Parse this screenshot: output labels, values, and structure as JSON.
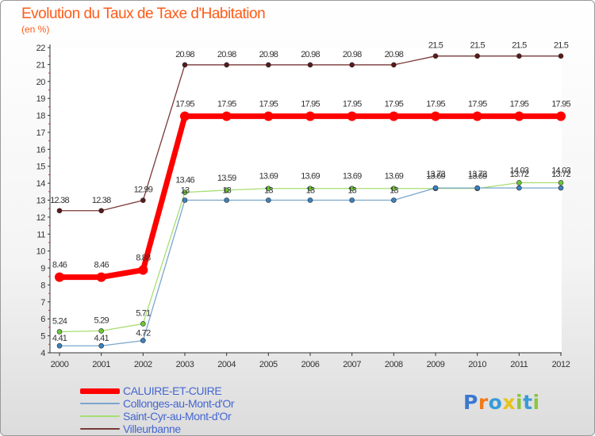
{
  "header": {
    "title": "Evolution du Taux de Taxe d'Habitation",
    "subtitle": "(en %)"
  },
  "logo": {
    "text": "Proxiti"
  },
  "chart_data": {
    "type": "line",
    "title": "Evolution du Taux de Taxe d'Habitation",
    "ylabel": "(en %)",
    "xlabel": "",
    "ylim": [
      4,
      22
    ],
    "yticks": [
      4,
      5,
      6,
      7,
      8,
      9,
      10,
      11,
      12,
      13,
      14,
      15,
      16,
      17,
      18,
      19,
      20,
      21,
      22
    ],
    "x": [
      "2000",
      "2001",
      "2002",
      "2003",
      "2004",
      "2005",
      "2006",
      "2007",
      "2008",
      "2009",
      "2010",
      "2011",
      "2012"
    ],
    "series": [
      {
        "name": "CALUIRE-ET-CUIRE",
        "color": "#ff0000",
        "marker_color": "#ff0000",
        "width": 7,
        "values": [
          8.46,
          8.46,
          8.88,
          17.95,
          17.95,
          17.95,
          17.95,
          17.95,
          17.95,
          17.95,
          17.95,
          17.95,
          17.95
        ],
        "labels": [
          "8.46",
          "8.46",
          "8.88",
          "17.95",
          "17.95",
          "17.95",
          "17.95",
          "17.95",
          "17.95",
          "17.95",
          "17.95",
          "17.95",
          "17.95"
        ]
      },
      {
        "name": "Collonges-au-Mont-d'Or",
        "color": "#7aa6cc",
        "marker_color": "#3b82c0",
        "width": 1.3,
        "values": [
          4.41,
          4.41,
          4.72,
          13,
          13,
          13,
          13,
          13,
          13,
          13.72,
          13.72,
          13.72,
          13.72
        ],
        "labels": [
          "4.41",
          "4.41",
          "4.72",
          "13",
          "13",
          "13",
          "13",
          "13",
          "13",
          "13.72",
          "13.72",
          "13.72",
          "13.72"
        ]
      },
      {
        "name": "Saint-Cyr-au-Mont-d'Or",
        "color": "#a6de72",
        "marker_color": "#6cc63a",
        "width": 1.3,
        "values": [
          5.24,
          5.29,
          5.71,
          13.46,
          13.59,
          13.69,
          13.69,
          13.69,
          13.69,
          13.69,
          13.69,
          14.03,
          14.03
        ],
        "labels": [
          "5.24",
          "5.29",
          "5.71",
          "13.46",
          "13.59",
          "13.69",
          "13.69",
          "13.69",
          "13.69",
          "13.69",
          "13.69",
          "14.03",
          "14.03"
        ]
      },
      {
        "name": "Villeurbanne",
        "color": "#7a3838",
        "marker_color": "#5a1a1a",
        "width": 1.3,
        "values": [
          12.38,
          12.38,
          12.99,
          20.98,
          20.98,
          20.98,
          20.98,
          20.98,
          20.98,
          21.5,
          21.5,
          21.5,
          21.5
        ],
        "labels": [
          "12.38",
          "12.38",
          "12.99",
          "20.98",
          "20.98",
          "20.98",
          "20.98",
          "20.98",
          "20.98",
          "21.5",
          "21.5",
          "21.5",
          "21.5"
        ]
      }
    ],
    "grid": false,
    "legend": "bottom-left"
  }
}
